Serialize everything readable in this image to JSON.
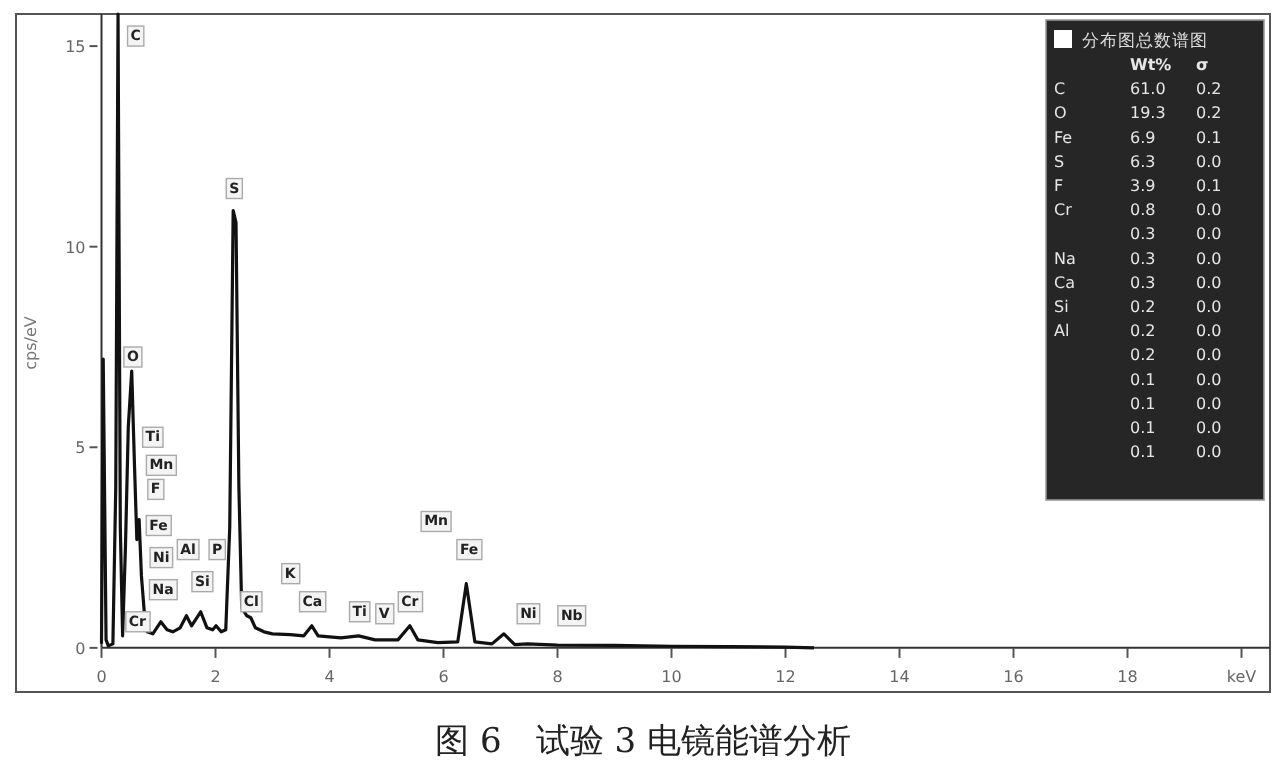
{
  "chart_data": [
    {
      "type": "line",
      "ylabel": "cps/eV",
      "annotations": [
        {
          "text": "C",
          "x": 0.6,
          "y": 15.3
        },
        {
          "text": "S",
          "x": 2.33,
          "y": 11.5
        },
        {
          "text": "O",
          "x": 0.55,
          "y": 7.3
        },
        {
          "text": "Ti",
          "x": 0.9,
          "y": 5.3
        },
        {
          "text": "Mn",
          "x": 1.05,
          "y": 4.6
        },
        {
          "text": "F",
          "x": 0.95,
          "y": 4.0
        },
        {
          "text": "Fe",
          "x": 1.0,
          "y": 3.1
        },
        {
          "text": "Ni",
          "x": 1.05,
          "y": 2.3
        },
        {
          "text": "Na",
          "x": 1.08,
          "y": 1.5
        },
        {
          "text": "Al",
          "x": 1.52,
          "y": 2.5
        },
        {
          "text": "Si",
          "x": 1.77,
          "y": 1.7
        },
        {
          "text": "P",
          "x": 2.03,
          "y": 2.5
        },
        {
          "text": "Cl",
          "x": 2.63,
          "y": 1.2
        },
        {
          "text": "K",
          "x": 3.31,
          "y": 1.9
        },
        {
          "text": "Ca",
          "x": 3.7,
          "y": 1.2
        },
        {
          "text": "Ti",
          "x": 4.53,
          "y": 0.95
        },
        {
          "text": "V",
          "x": 4.96,
          "y": 0.9
        },
        {
          "text": "Cr",
          "x": 5.41,
          "y": 1.2
        },
        {
          "text": "Mn",
          "x": 5.87,
          "y": 3.2
        },
        {
          "text": "Fe",
          "x": 6.45,
          "y": 2.5
        },
        {
          "text": "Ni",
          "x": 7.49,
          "y": 0.9
        },
        {
          "text": "Nb",
          "x": 8.25,
          "y": 0.85
        },
        {
          "text": "Cr",
          "x": 0.63,
          "y": 0.7
        },
        "图 6　试验 3 电镜能谱分析"
      ],
      "xlim": [
        -1.5,
        20.5
      ],
      "ylim": [
        -1.1,
        15.8
      ],
      "xticks": [
        0,
        2,
        4,
        6,
        8,
        10,
        12,
        14,
        16,
        18,
        {
          "value": 20,
          "label": "keV"
        }
      ],
      "yticks": [
        0,
        5,
        10,
        15
      ],
      "series": [
        {
          "color": "#111111",
          "x": [
            0,
            0.03,
            0.08,
            0.12,
            0.2,
            0.25,
            0.29,
            0.33,
            0.37,
            0.42,
            0.47,
            0.53,
            0.58,
            0.62,
            0.66,
            0.7,
            0.75,
            0.8,
            0.9,
            1.04,
            1.15,
            1.25,
            1.38,
            1.49,
            1.58,
            1.74,
            1.85,
            1.95,
            2.01,
            2.1,
            2.18,
            2.25,
            2.31,
            2.36,
            2.41,
            2.46,
            2.55,
            2.62,
            2.7,
            2.85,
            3.0,
            3.31,
            3.55,
            3.69,
            3.8,
            4.2,
            4.51,
            4.8,
            5.2,
            5.41,
            5.55,
            5.9,
            6.25,
            6.4,
            6.55,
            6.85,
            7.06,
            7.25,
            7.47,
            8,
            9,
            10,
            11,
            12,
            12.5
          ],
          "values": [
            0.1,
            7.2,
            0.2,
            0.05,
            0.1,
            4,
            15.8,
            3,
            0.3,
            2.5,
            5.5,
            6.9,
            4.5,
            2.7,
            3.2,
            1.8,
            0.9,
            0.4,
            0.35,
            0.65,
            0.45,
            0.4,
            0.5,
            0.8,
            0.55,
            0.9,
            0.5,
            0.45,
            0.55,
            0.4,
            0.45,
            3,
            10.9,
            10.6,
            4,
            1.0,
            0.8,
            0.75,
            0.5,
            0.4,
            0.35,
            0.33,
            0.3,
            0.55,
            0.3,
            0.25,
            0.3,
            0.2,
            0.2,
            0.55,
            0.2,
            0.13,
            0.15,
            1.6,
            0.15,
            0.1,
            0.35,
            0.08,
            0.1,
            0.07,
            0.06,
            0.04,
            0.03,
            0.02,
            0
          ]
        }
      ]
    },
    {
      "type": "other",
      "title": "分布图总数谱图",
      "annotations": [
        "Wt%\tσ",
        "C\t61.0\t0.2",
        "O\t19.3\t0.2",
        "Fe\t6.9\t0.1",
        "S\t6.3\t0.0",
        "F\t3.9\t0.1",
        "Cr\t0.8\t0.0",
        "\t0.3\t0.0",
        "Na\t0.3\t0.0",
        "Ca\t0.3\t0.0",
        "Si\t0.2\t0.0",
        "Al\t0.2\t0.0",
        "\t0.2\t0.0",
        "\t0.1\t0.0",
        "\t0.1\t0.0",
        "\t0.1\t0.0",
        "\t0.1\t0.0"
      ]
    }
  ]
}
